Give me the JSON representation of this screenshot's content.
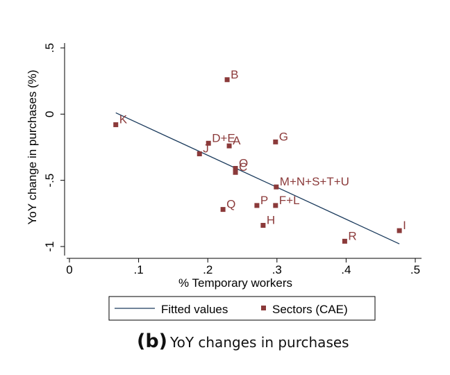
{
  "chart_data": {
    "type": "scatter",
    "xlabel": "% Temporary workers",
    "ylabel": "YoY change in purchases (%)",
    "xlim": [
      0,
      0.5
    ],
    "ylim": [
      -1,
      0.5
    ],
    "x_ticks": [
      0,
      0.1,
      0.2,
      0.3,
      0.4,
      0.5
    ],
    "x_tick_labels": [
      "0",
      ".1",
      ".2",
      ".3",
      ".4",
      ".5"
    ],
    "y_ticks": [
      -1,
      -0.5,
      0,
      0.5
    ],
    "y_tick_labels": [
      "-1",
      "-.5",
      "0",
      ".5"
    ],
    "grid": false,
    "legend_position": "bottom",
    "legend": [
      "Fitted values",
      "Sectors (CAE)"
    ],
    "series": [
      {
        "name": "Sectors (CAE)",
        "type": "scatter",
        "color": "#8b3a3a",
        "points": [
          {
            "label": "B",
            "x": 0.228,
            "y": 0.26
          },
          {
            "label": "K",
            "x": 0.067,
            "y": -0.08
          },
          {
            "label": "D+E",
            "x": 0.201,
            "y": -0.22
          },
          {
            "label": "A",
            "x": 0.231,
            "y": -0.24
          },
          {
            "label": "J",
            "x": 0.188,
            "y": -0.3
          },
          {
            "label": "G",
            "x": 0.298,
            "y": -0.21
          },
          {
            "label": "O",
            "x": 0.24,
            "y": -0.41
          },
          {
            "label": "C",
            "x": 0.24,
            "y": -0.44
          },
          {
            "label": "M+N+S+T+U",
            "x": 0.299,
            "y": -0.55
          },
          {
            "label": "P",
            "x": 0.271,
            "y": -0.69
          },
          {
            "label": "F+L",
            "x": 0.298,
            "y": -0.69
          },
          {
            "label": "Q",
            "x": 0.222,
            "y": -0.72
          },
          {
            "label": "H",
            "x": 0.28,
            "y": -0.84
          },
          {
            "label": "I",
            "x": 0.477,
            "y": -0.88
          },
          {
            "label": "R",
            "x": 0.398,
            "y": -0.96
          }
        ]
      },
      {
        "name": "Fitted values",
        "type": "line",
        "color": "#1a3a5c",
        "x": [
          0.067,
          0.477
        ],
        "y": [
          0.01,
          -0.98
        ]
      }
    ]
  },
  "caption": {
    "label": "(b)",
    "text": "YoY changes in purchases"
  }
}
